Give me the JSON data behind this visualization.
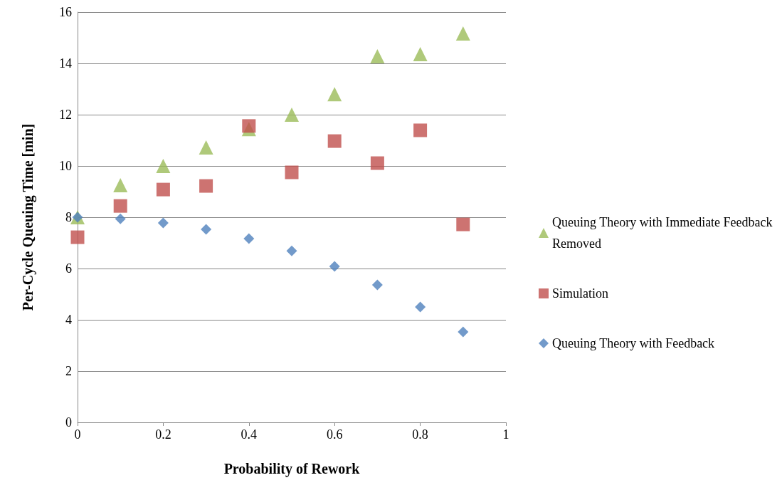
{
  "chart_data": {
    "type": "scatter",
    "xlabel": "Probability of Rework",
    "ylabel": "Per-Cycle Queuing Time [min]",
    "x": [
      0,
      0.1,
      0.2,
      0.3,
      0.4,
      0.5,
      0.6,
      0.7,
      0.8,
      0.9
    ],
    "series": [
      {
        "name": "Queuing Theory with Immediate Feedback Removed",
        "color": "#9bbb59",
        "marker": "triangle",
        "values": [
          8.0,
          9.25,
          10.0,
          10.72,
          11.44,
          12.0,
          12.8,
          14.28,
          14.36,
          15.17
        ]
      },
      {
        "name": "Simulation",
        "color": "#c0504d",
        "marker": "square",
        "values": [
          7.22,
          8.44,
          9.08,
          9.22,
          11.56,
          9.75,
          10.97,
          10.11,
          11.39,
          7.72
        ]
      },
      {
        "name": "Queuing Theory with Feedback",
        "color": "#4f81bd",
        "marker": "diamond",
        "values": [
          8.0,
          7.94,
          7.78,
          7.53,
          7.17,
          6.69,
          6.08,
          5.36,
          4.5,
          3.53
        ]
      }
    ],
    "xlim": [
      0,
      1
    ],
    "xticks": [
      0,
      0.2,
      0.4,
      0.6,
      0.8,
      1
    ],
    "ylim": [
      0,
      16
    ],
    "yticks": [
      0,
      2,
      4,
      6,
      8,
      10,
      12,
      14,
      16
    ],
    "grid": "y",
    "legend": "right"
  }
}
